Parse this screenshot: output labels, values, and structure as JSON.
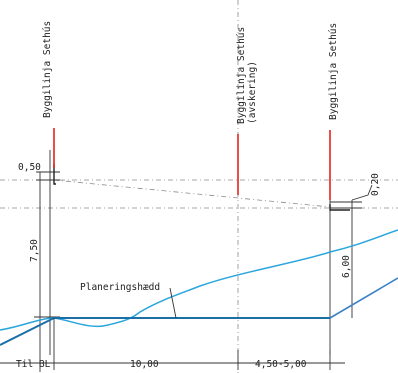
{
  "colors": {
    "building_line": "#e2231a",
    "planning_level": "#1a6fa8",
    "terrain": "#2aa6dc",
    "slope": "#3b82c4"
  },
  "building_lines": [
    {
      "label": "Byggilinja Sethús"
    },
    {
      "label": "Byggilinja Sethús",
      "sublabel": "(avskering)"
    },
    {
      "label": "Byggilinja Sethús"
    }
  ],
  "heights": {
    "top_offset": "0,50",
    "left_height": "7,50",
    "right_offset": "0,20",
    "right_height": "6,00"
  },
  "planning_label": "Planeringshædd",
  "bottom": {
    "til_bl": "Til BL",
    "dist_1": "10,00",
    "dist_2": "4,50-5,00"
  }
}
